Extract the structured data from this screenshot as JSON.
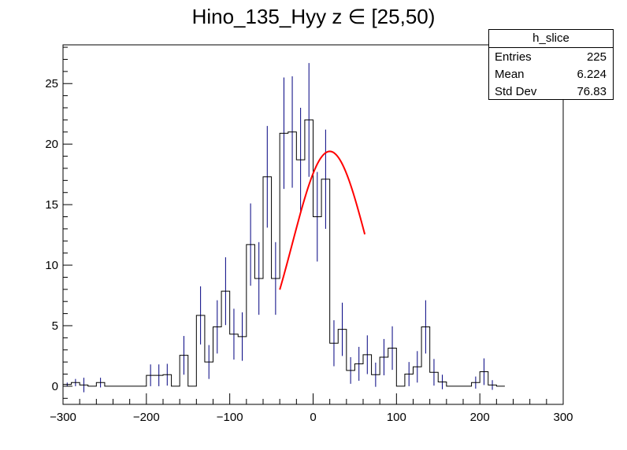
{
  "chart_data": {
    "type": "histogram",
    "title": "Hino_135_Hyy z  ∈ [25,50)",
    "xlim": [
      -300,
      300
    ],
    "ylim": [
      -1.5,
      28.2
    ],
    "x_ticks": [
      -300,
      -200,
      -100,
      0,
      100,
      200,
      300
    ],
    "y_ticks": [
      0,
      5,
      10,
      15,
      20,
      25
    ],
    "bin_width": 10,
    "bins": [
      {
        "x": -300,
        "y": 0.15,
        "err": 0.15
      },
      {
        "x": -290,
        "y": 0.3,
        "err": 0.3
      },
      {
        "x": -280,
        "y": 0.1,
        "err": 0.6
      },
      {
        "x": -270,
        "y": 0.0,
        "err": 0.0
      },
      {
        "x": -260,
        "y": 0.3,
        "err": 0.4
      },
      {
        "x": -250,
        "y": 0.0,
        "err": 0.0
      },
      {
        "x": -240,
        "y": 0.0,
        "err": 0.0
      },
      {
        "x": -230,
        "y": 0.0,
        "err": 0.0
      },
      {
        "x": -220,
        "y": 0.0,
        "err": 0.0
      },
      {
        "x": -210,
        "y": 0.0,
        "err": 0.0
      },
      {
        "x": -200,
        "y": 0.9,
        "err": 0.9
      },
      {
        "x": -190,
        "y": 0.9,
        "err": 0.9
      },
      {
        "x": -180,
        "y": 0.95,
        "err": 0.9
      },
      {
        "x": -170,
        "y": 0.0,
        "err": 0.0
      },
      {
        "x": -160,
        "y": 2.55,
        "err": 1.6
      },
      {
        "x": -150,
        "y": 0.0,
        "err": 0.0
      },
      {
        "x": -140,
        "y": 5.85,
        "err": 2.4
      },
      {
        "x": -130,
        "y": 2.0,
        "err": 1.4
      },
      {
        "x": -120,
        "y": 4.9,
        "err": 2.2
      },
      {
        "x": -110,
        "y": 7.85,
        "err": 2.8
      },
      {
        "x": -100,
        "y": 4.3,
        "err": 2.1
      },
      {
        "x": -90,
        "y": 4.1,
        "err": 2.0
      },
      {
        "x": -80,
        "y": 11.7,
        "err": 3.4
      },
      {
        "x": -70,
        "y": 8.9,
        "err": 3.0
      },
      {
        "x": -60,
        "y": 17.3,
        "err": 4.2
      },
      {
        "x": -50,
        "y": 8.9,
        "err": 3.0
      },
      {
        "x": -40,
        "y": 20.9,
        "err": 4.6
      },
      {
        "x": -30,
        "y": 21.0,
        "err": 4.6
      },
      {
        "x": -20,
        "y": 18.7,
        "err": 4.3
      },
      {
        "x": -10,
        "y": 22.0,
        "err": 4.7
      },
      {
        "x": 0,
        "y": 14.0,
        "err": 3.7
      },
      {
        "x": 10,
        "y": 17.1,
        "err": 4.1
      },
      {
        "x": 20,
        "y": 3.55,
        "err": 1.9
      },
      {
        "x": 30,
        "y": 4.7,
        "err": 2.2
      },
      {
        "x": 40,
        "y": 1.3,
        "err": 1.1
      },
      {
        "x": 50,
        "y": 1.85,
        "err": 1.4
      },
      {
        "x": 60,
        "y": 2.6,
        "err": 1.6
      },
      {
        "x": 70,
        "y": 0.95,
        "err": 1.0
      },
      {
        "x": 80,
        "y": 2.4,
        "err": 1.5
      },
      {
        "x": 90,
        "y": 3.15,
        "err": 1.8
      },
      {
        "x": 100,
        "y": 0.0,
        "err": 0.0
      },
      {
        "x": 110,
        "y": 1.0,
        "err": 1.0
      },
      {
        "x": 120,
        "y": 1.6,
        "err": 1.3
      },
      {
        "x": 130,
        "y": 4.9,
        "err": 2.2
      },
      {
        "x": 140,
        "y": 1.15,
        "err": 1.1
      },
      {
        "x": 150,
        "y": 0.35,
        "err": 0.6
      },
      {
        "x": 160,
        "y": 0.0,
        "err": 0.0
      },
      {
        "x": 170,
        "y": 0.0,
        "err": 0.0
      },
      {
        "x": 180,
        "y": 0.0,
        "err": 0.0
      },
      {
        "x": 190,
        "y": 0.3,
        "err": 0.5
      },
      {
        "x": 200,
        "y": 1.2,
        "err": 1.1
      },
      {
        "x": 210,
        "y": 0.1,
        "err": 0.4
      },
      {
        "x": 220,
        "y": 0.0,
        "err": 0.0
      }
    ],
    "fit": {
      "type": "gaussian",
      "color": "#ff0000",
      "range": [
        -40,
        62
      ],
      "amplitude": 19.4,
      "mean": 20,
      "sigma": 45
    },
    "stats_box": {
      "name": "h_slice",
      "rows": [
        {
          "label": "Entries",
          "value": "225"
        },
        {
          "label": "Mean",
          "value": "6.224"
        },
        {
          "label": "Std Dev",
          "value": "76.83"
        }
      ]
    },
    "colors": {
      "histogram": "#000000",
      "error_bars": "#000080",
      "fit": "#ff0000"
    }
  }
}
